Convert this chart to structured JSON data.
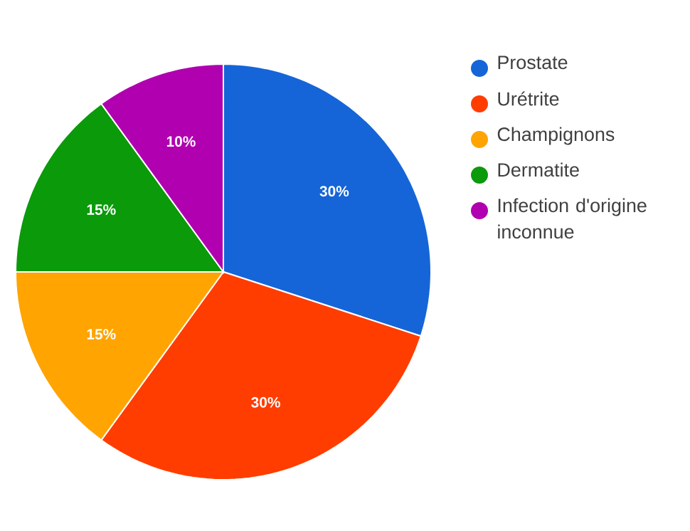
{
  "chart_data": {
    "type": "pie",
    "categories": [
      "Prostate",
      "Urétrite",
      "Champignons",
      "Dermatite",
      "Infection d'origine inconnue"
    ],
    "values": [
      30,
      30,
      15,
      15,
      10
    ],
    "value_labels": [
      "30%",
      "30%",
      "15%",
      "15%",
      "10%"
    ],
    "colors": [
      "#1565d8",
      "#ff3d00",
      "#ffa400",
      "#0a9a0a",
      "#b000b0"
    ],
    "legend": "right"
  }
}
